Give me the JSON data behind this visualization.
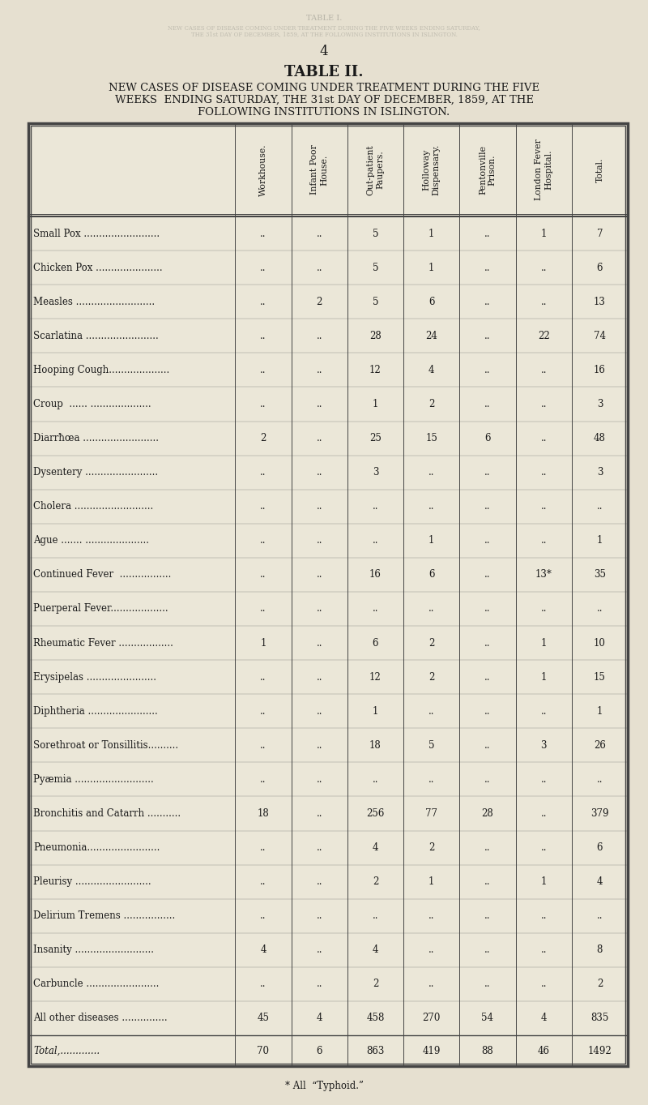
{
  "page_number": "4",
  "title": "TABLE II.",
  "subtitle_line1": "NEW CASES OF DISEASE COMING UNDER TREATMENT DURING THE FIVE",
  "subtitle_line2": "WEEKS  ENDING SATURDAY, THE 31st DAY OF DECEMBER, 1859, AT THE",
  "subtitle_line3": "FOLLOWING INSTITUTIONS IN ISLINGTON.",
  "ghost_line1": "TABLE I.",
  "ghost_line2": "NEW CASES OF DISEASE COMING UNDER TREATMENT DURING THE FIVE WEEKS ENDING SATURDAY, THE 31st DAY OF DECEMBER, 1859, AT THE FOLLOWING INSTITUTIONS IN ISLINGTON.",
  "col_headers": [
    "Workhouse.",
    "Infant Poor\nHouse.",
    "Out-patient\nPaupers.",
    "Holloway\nDispensary.",
    "Pentonville\nPrison.",
    "London Fever\nHospital.",
    "Total."
  ],
  "rows": [
    [
      "Small Pox .........................",
      "..",
      "..",
      "5",
      "1",
      "..",
      "1",
      "7"
    ],
    [
      "Chicken Pox ......................",
      "..",
      "..",
      "5",
      "1",
      "..",
      "..",
      "6"
    ],
    [
      "Measles ..........................",
      "..",
      "2",
      "5",
      "6",
      "..",
      "..",
      "13"
    ],
    [
      "Scarlatina ........................",
      "..",
      "..",
      "28",
      "24",
      "..",
      "22",
      "74"
    ],
    [
      "Hooping Cough....................",
      "..",
      "..",
      "12",
      "4",
      "..",
      "..",
      "16"
    ],
    [
      "Croup  ...... ....................",
      "..",
      "..",
      "1",
      "2",
      "..",
      "..",
      "3"
    ],
    [
      "Diarrħœa .........................",
      "2",
      "..",
      "25",
      "15",
      "6",
      "..",
      "48"
    ],
    [
      "Dysentery ........................",
      "..",
      "..",
      "3",
      "..",
      "..",
      "..",
      "3"
    ],
    [
      "Cholera ..........................",
      "..",
      "..",
      "..",
      "..",
      "..",
      "..",
      ".."
    ],
    [
      "Ague ....... .....................",
      "..",
      "..",
      "..",
      "1",
      "..",
      "..",
      "1"
    ],
    [
      "Continued Fever  .................",
      "..",
      "..",
      "16",
      "6",
      "..",
      "13*",
      "35"
    ],
    [
      "Puerperal Fever...................",
      "..",
      "..",
      "..",
      "..",
      "..",
      "..",
      ".."
    ],
    [
      "Rheumatic Fever ..................",
      "1",
      "..",
      "6",
      "2",
      "..",
      "1",
      "10"
    ],
    [
      "Erysipelas .......................",
      "..",
      "..",
      "12",
      "2",
      "..",
      "1",
      "15"
    ],
    [
      "Diphtheria .......................",
      "..",
      "..",
      "1",
      "..",
      "..",
      "..",
      "1"
    ],
    [
      "Sorethroat or Tonsillitis..........",
      "..",
      "..",
      "18",
      "5",
      "..",
      "3",
      "26"
    ],
    [
      "Pyæmia ..........................",
      "..",
      "..",
      "..",
      "..",
      "..",
      "..",
      ".."
    ],
    [
      "Bronchitis and Catarrh ...........",
      "18",
      "..",
      "256",
      "77",
      "28",
      "..",
      "379"
    ],
    [
      "Pneumonia........................",
      "..",
      "..",
      "4",
      "2",
      "..",
      "..",
      "6"
    ],
    [
      "Pleurisy .........................",
      "..",
      "..",
      "2",
      "1",
      "..",
      "1",
      "4"
    ],
    [
      "Delirium Tremens .................",
      "..",
      "..",
      "..",
      "..",
      "..",
      "..",
      ".."
    ],
    [
      "Insanity ..........................",
      "4",
      "..",
      "4",
      "..",
      "..",
      "..",
      "8"
    ],
    [
      "Carbuncle ........................",
      "..",
      "..",
      "2",
      "..",
      "..",
      "..",
      "2"
    ],
    [
      "All other diseases ...............",
      "45",
      "4",
      "458",
      "270",
      "54",
      "4",
      "835"
    ]
  ],
  "total_row": [
    "Total,.............",
    "70",
    "6",
    "863",
    "419",
    "88",
    "46",
    "1492"
  ],
  "footnote": "* All  “Typhoid.”",
  "bg_color": "#e6e0d0",
  "table_bg": "#ebe7d8",
  "text_color": "#1a1a1a",
  "line_color": "#444444",
  "title_fontsize": 13,
  "subtitle_fontsize": 9.5,
  "header_fontsize": 7.8,
  "label_fontsize": 8.5,
  "cell_fontsize": 8.5,
  "footnote_fontsize": 8.5
}
